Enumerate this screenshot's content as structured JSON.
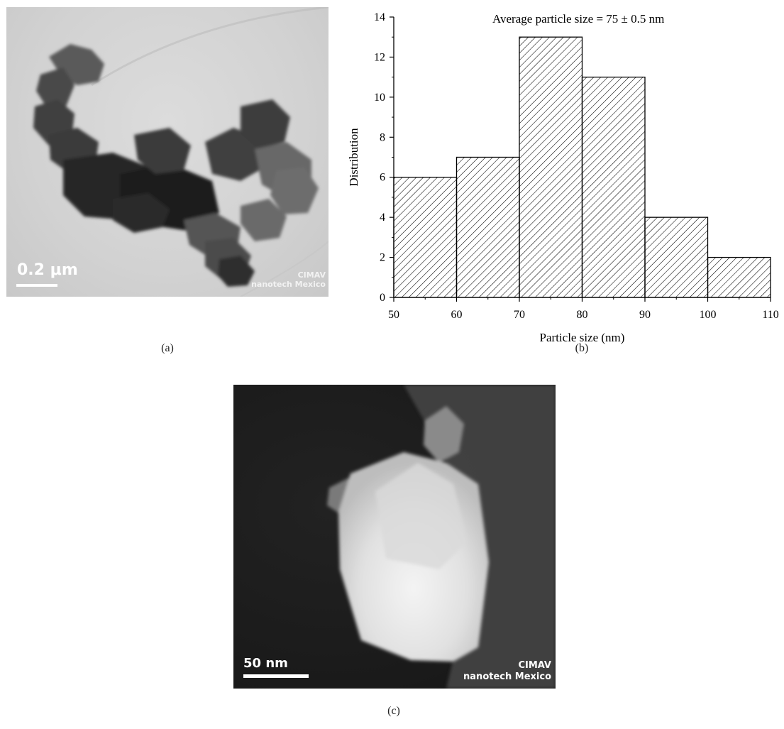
{
  "panel_a": {
    "caption": "(a)",
    "scale_bar_label": "0.2 μm",
    "watermark_line1": "CIMAV",
    "watermark_line2": "nanotech Mexico"
  },
  "panel_b": {
    "caption": "(b)"
  },
  "panel_c": {
    "caption": "(c)",
    "scale_bar_label": "50 nm",
    "watermark_line1": "CIMAV",
    "watermark_line2": "nanotech Mexico"
  },
  "chart_data": {
    "type": "bar",
    "annotation": "Average particle size = 75 ± 0.5 nm",
    "xlabel": "Particle size (nm)",
    "ylabel": "Distribution",
    "bins": [
      {
        "from": 50,
        "to": 60,
        "value": 6
      },
      {
        "from": 60,
        "to": 70,
        "value": 7
      },
      {
        "from": 70,
        "to": 80,
        "value": 13
      },
      {
        "from": 80,
        "to": 90,
        "value": 11
      },
      {
        "from": 90,
        "to": 100,
        "value": 4
      },
      {
        "from": 100,
        "to": 110,
        "value": 2
      }
    ],
    "xlim": [
      50,
      110
    ],
    "ylim": [
      0,
      14
    ],
    "xticks": [
      "50",
      "60",
      "70",
      "80",
      "90",
      "100",
      "110"
    ],
    "yticks": [
      "0",
      "2",
      "4",
      "6",
      "8",
      "10",
      "12",
      "14"
    ],
    "fill": "diagonal-hatch",
    "grid": false,
    "legend": "none"
  }
}
